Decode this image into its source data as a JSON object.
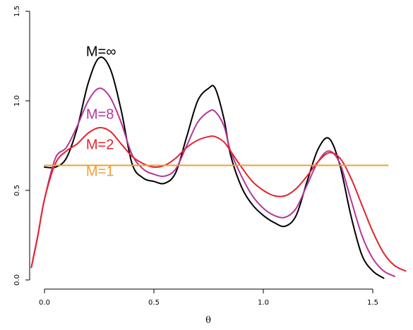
{
  "chart_data": {
    "type": "line",
    "title": "",
    "xlabel": "θ",
    "ylabel": "",
    "xlim": [
      -0.06,
      1.65
    ],
    "ylim": [
      0.0,
      1.5
    ],
    "xticks": [
      0.0,
      0.5,
      1.0,
      1.5
    ],
    "yticks": [
      0.0,
      0.5,
      1.0,
      1.5
    ],
    "xtick_labels": [
      "0.0",
      "0.5",
      "1.0",
      "1.5"
    ],
    "ytick_labels": [
      "0.0",
      "0.5",
      "1.0",
      "1.5"
    ],
    "grid": false,
    "series": [
      {
        "name": "M=∞",
        "color": "#000000",
        "x": [
          0.0,
          0.05,
          0.1,
          0.15,
          0.2,
          0.25,
          0.3,
          0.35,
          0.4,
          0.45,
          0.5,
          0.55,
          0.6,
          0.65,
          0.7,
          0.75,
          0.78,
          0.82,
          0.85,
          0.9,
          0.95,
          1.0,
          1.05,
          1.1,
          1.15,
          1.2,
          1.25,
          1.3,
          1.35,
          1.4,
          1.45,
          1.5,
          1.55
        ],
        "y": [
          0.63,
          0.63,
          0.68,
          0.85,
          1.1,
          1.24,
          1.18,
          0.95,
          0.65,
          0.57,
          0.55,
          0.54,
          0.6,
          0.8,
          1.0,
          1.07,
          1.07,
          0.9,
          0.7,
          0.52,
          0.42,
          0.36,
          0.32,
          0.3,
          0.36,
          0.55,
          0.73,
          0.79,
          0.64,
          0.36,
          0.14,
          0.05,
          0.01
        ]
      },
      {
        "name": "M=8",
        "color": "#b5379b",
        "x": [
          -0.06,
          -0.03,
          0.0,
          0.05,
          0.1,
          0.15,
          0.2,
          0.25,
          0.3,
          0.35,
          0.4,
          0.45,
          0.5,
          0.55,
          0.6,
          0.65,
          0.7,
          0.75,
          0.78,
          0.82,
          0.85,
          0.9,
          0.95,
          1.0,
          1.05,
          1.1,
          1.15,
          1.2,
          1.25,
          1.3,
          1.35,
          1.4,
          1.45,
          1.5,
          1.55,
          1.6
        ],
        "y": [
          0.07,
          0.25,
          0.45,
          0.68,
          0.74,
          0.86,
          1.0,
          1.07,
          1.02,
          0.88,
          0.7,
          0.62,
          0.59,
          0.58,
          0.62,
          0.75,
          0.88,
          0.94,
          0.94,
          0.86,
          0.72,
          0.58,
          0.47,
          0.4,
          0.36,
          0.35,
          0.4,
          0.53,
          0.66,
          0.72,
          0.65,
          0.45,
          0.25,
          0.12,
          0.05,
          0.02
        ]
      },
      {
        "name": "M=2",
        "color": "#e3232c",
        "x": [
          -0.06,
          -0.03,
          0.0,
          0.05,
          0.1,
          0.15,
          0.2,
          0.25,
          0.3,
          0.35,
          0.4,
          0.45,
          0.5,
          0.55,
          0.6,
          0.65,
          0.7,
          0.75,
          0.78,
          0.82,
          0.85,
          0.9,
          0.95,
          1.0,
          1.05,
          1.1,
          1.15,
          1.2,
          1.25,
          1.3,
          1.35,
          1.4,
          1.45,
          1.5,
          1.55,
          1.6,
          1.65
        ],
        "y": [
          0.07,
          0.25,
          0.45,
          0.65,
          0.72,
          0.76,
          0.82,
          0.85,
          0.83,
          0.76,
          0.69,
          0.65,
          0.63,
          0.64,
          0.68,
          0.74,
          0.78,
          0.8,
          0.8,
          0.77,
          0.72,
          0.63,
          0.55,
          0.5,
          0.47,
          0.47,
          0.51,
          0.58,
          0.66,
          0.71,
          0.68,
          0.57,
          0.42,
          0.27,
          0.15,
          0.08,
          0.05
        ]
      },
      {
        "name": "M=1",
        "color": "#f0a030",
        "x": [
          0.0,
          1.57
        ],
        "y": [
          0.64,
          0.64
        ]
      }
    ],
    "annotations": [
      {
        "text": "M=∞",
        "x": 0.19,
        "y": 1.25,
        "color": "#000000"
      },
      {
        "text": "M=8",
        "x": 0.19,
        "y": 0.9,
        "color": "#b5379b"
      },
      {
        "text": "M=2",
        "x": 0.19,
        "y": 0.73,
        "color": "#e3232c"
      },
      {
        "text": "M=1",
        "x": 0.19,
        "y": 0.58,
        "color": "#f0a030"
      }
    ]
  }
}
